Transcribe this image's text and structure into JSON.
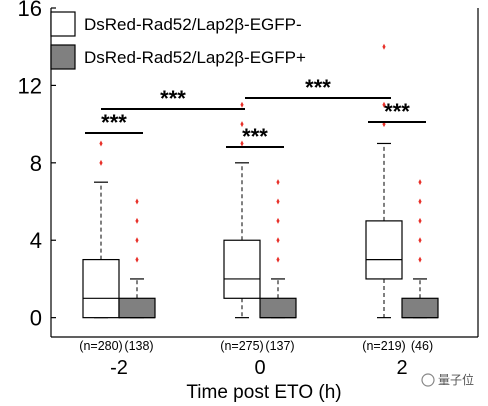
{
  "chart_data": {
    "type": "box",
    "title": "",
    "xlabel": "Time post ETO (h)",
    "ylabel": "",
    "ylim": [
      -1,
      16
    ],
    "yticks": [
      0,
      4,
      8,
      12,
      16
    ],
    "categories": [
      "-2",
      "0",
      "2"
    ],
    "legend": {
      "placement": "top-left"
    },
    "series": [
      {
        "name": "DsRed-Rad52/Lap2β-EGFP-",
        "fill": "#ffffff",
        "boxes": [
          {
            "category": "-2",
            "n_label": "(n=280)",
            "whisker_low": 0,
            "q1": 0,
            "median": 1,
            "q3": 3,
            "whisker_high": 7,
            "outliers": [
              8,
              9
            ]
          },
          {
            "category": "0",
            "n_label": "(n=275)",
            "whisker_low": 0,
            "q1": 1,
            "median": 2,
            "q3": 4,
            "whisker_high": 8,
            "outliers": [
              9,
              10,
              11
            ]
          },
          {
            "category": "2",
            "n_label": "(n=219)",
            "whisker_low": 0,
            "q1": 2,
            "median": 3,
            "q3": 5,
            "whisker_high": 9,
            "outliers": [
              10,
              11,
              14
            ]
          }
        ]
      },
      {
        "name": "DsRed-Rad52/Lap2β-EGFP+",
        "fill": "#808080",
        "boxes": [
          {
            "category": "-2",
            "n_label": "(138)",
            "whisker_low": 0,
            "q1": 0,
            "median": 0,
            "q3": 1,
            "whisker_high": 2,
            "outliers": [
              3,
              4,
              5,
              6
            ]
          },
          {
            "category": "0",
            "n_label": "(137)",
            "whisker_low": 0,
            "q1": 0,
            "median": 0,
            "q3": 1,
            "whisker_high": 2,
            "outliers": [
              3,
              4,
              5,
              6,
              7
            ]
          },
          {
            "category": "2",
            "n_label": "(46)",
            "whisker_low": 0,
            "q1": 0,
            "median": 0,
            "q3": 1,
            "whisker_high": 2,
            "outliers": [
              3,
              4,
              5,
              6,
              7
            ]
          }
        ]
      }
    ],
    "significance": [
      {
        "label": "***",
        "between": "-2 EGFP- vs -2 EGFP+"
      },
      {
        "label": "***",
        "between": "0 EGFP- vs 0 EGFP+"
      },
      {
        "label": "***",
        "between": "2 EGFP- vs 2 EGFP+"
      },
      {
        "label": "***",
        "between": "-2 vs 0"
      },
      {
        "label": "***",
        "between": "0 vs 2"
      }
    ],
    "outlier_color": "#e8312a"
  },
  "watermark": "量子位"
}
